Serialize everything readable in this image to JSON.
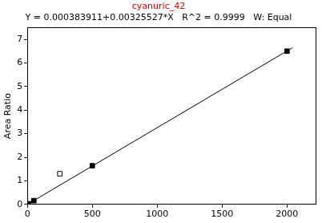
{
  "chart_data": {
    "type": "scatter",
    "title": "cyanuric_42",
    "title_color": "#e00000",
    "subtitle": "Y = 0.000383911+0.00325527*X   R^2 = 0.9999   W: Equal",
    "ylabel": "Area Ratio",
    "xlim": [
      0,
      2220
    ],
    "xticks": [
      0,
      500,
      1000,
      1500,
      2000
    ],
    "ylim": [
      0,
      7.5
    ],
    "yticks": [
      0,
      1,
      2,
      3,
      4,
      5,
      6,
      7
    ],
    "grid": false,
    "series": [
      {
        "type": "scatter",
        "marker": "square",
        "color": "#000000",
        "x": [
          0,
          10,
          50,
          500,
          2000
        ],
        "values": [
          0.0,
          0.03,
          0.16,
          1.64,
          6.5
        ]
      },
      {
        "type": "scatter",
        "marker": "square_open",
        "color": "#000000",
        "x": [
          250
        ],
        "values": [
          1.3
        ]
      },
      {
        "type": "line",
        "line_style": "solid",
        "color": "#000000",
        "x": [
          0,
          2040
        ],
        "values": [
          0.0,
          6.64
        ]
      }
    ]
  }
}
